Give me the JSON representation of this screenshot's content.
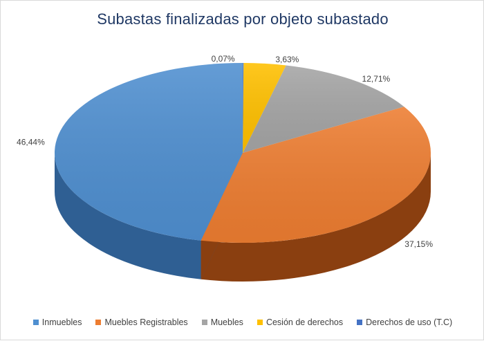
{
  "chart_data": {
    "type": "pie",
    "title": "Subastas finalizadas por objeto subastado",
    "legend_position": "bottom",
    "slices": [
      {
        "label": "Inmuebles",
        "value": 46.44,
        "display": "46,44%",
        "color": "#4f8fd0",
        "side_color": "#2f5f93"
      },
      {
        "label": "Muebles Registrables",
        "value": 37.15,
        "display": "37,15%",
        "color": "#ed7d31",
        "side_color": "#8a3f10"
      },
      {
        "label": "Muebles",
        "value": 12.71,
        "display": "12,71%",
        "color": "#a5a5a5",
        "side_color": "#4a4a4a"
      },
      {
        "label": "Cesión de derechos",
        "value": 3.63,
        "display": "3,63%",
        "color": "#ffc000",
        "side_color": "#8a6a10"
      },
      {
        "label": "Derechos de uso (T.C)",
        "value": 0.07,
        "display": "0,07%",
        "color": "#4472c4",
        "side_color": "#24406e"
      }
    ]
  }
}
